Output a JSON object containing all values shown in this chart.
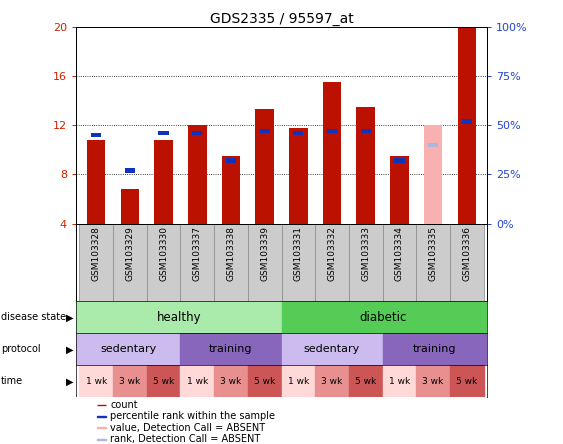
{
  "title": "GDS2335 / 95597_at",
  "samples": [
    "GSM103328",
    "GSM103329",
    "GSM103330",
    "GSM103337",
    "GSM103338",
    "GSM103339",
    "GSM103331",
    "GSM103332",
    "GSM103333",
    "GSM103334",
    "GSM103335",
    "GSM103336"
  ],
  "count_values": [
    10.8,
    6.8,
    10.8,
    12.0,
    9.5,
    13.3,
    11.8,
    15.5,
    13.5,
    9.5,
    12.0,
    20.0
  ],
  "percentile_values": [
    45,
    27,
    46,
    46,
    32,
    47,
    46,
    47,
    47,
    32,
    40,
    52
  ],
  "absent_flags": [
    false,
    false,
    false,
    false,
    false,
    false,
    false,
    false,
    false,
    false,
    true,
    false
  ],
  "ymin": 4,
  "ymax": 20,
  "y_ticks": [
    4,
    8,
    12,
    16,
    20
  ],
  "y2_ticks": [
    0,
    25,
    50,
    75,
    100
  ],
  "bar_color": "#bb1100",
  "bar_color_absent": "#f8b0b0",
  "blue_color": "#1133bb",
  "blue_color_absent": "#aab8dd",
  "grid_color": "#000000",
  "disease_state_healthy_color": "#aaeaaa",
  "disease_state_diabetic_color": "#55cc55",
  "protocol_sedentary_color": "#ccbbee",
  "protocol_training_color": "#8866bb",
  "time_labels": [
    "1 wk",
    "3 wk",
    "5 wk",
    "1 wk",
    "3 wk",
    "5 wk",
    "1 wk",
    "3 wk",
    "5 wk",
    "1 wk",
    "3 wk",
    "5 wk"
  ],
  "time_colors": [
    "#ffd8d8",
    "#e89090",
    "#cc5555",
    "#ffd8d8",
    "#e89090",
    "#cc5555",
    "#ffd8d8",
    "#e89090",
    "#cc5555",
    "#ffd8d8",
    "#e89090",
    "#cc5555"
  ],
  "bg_color": "#ffffff",
  "tick_label_color_left": "#cc2200",
  "tick_label_color_right": "#2244cc",
  "sample_bg_color": "#cccccc"
}
